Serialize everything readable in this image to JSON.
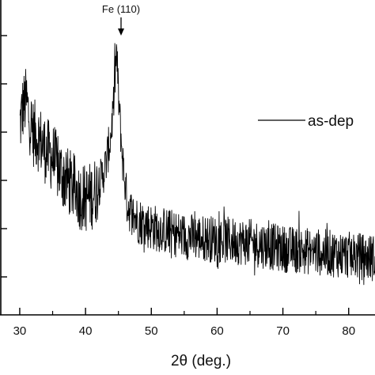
{
  "chart_data": {
    "type": "line",
    "title": "",
    "xlabel": "2θ (deg.)",
    "ylabel": "",
    "xlim": [
      27,
      84
    ],
    "ylim": [
      0,
      1
    ],
    "x_ticks": [
      30,
      40,
      50,
      60,
      70,
      80
    ],
    "x_tick_labels": [
      "30",
      "40",
      "50",
      "60",
      "70",
      "80"
    ],
    "y_tick_count": 7,
    "grid": false,
    "legend": {
      "placement": "right",
      "entries": [
        "as-dep"
      ]
    },
    "annotations": [
      {
        "text": "Fe (110)",
        "x": 44.7,
        "type": "arrow-down"
      }
    ],
    "series": [
      {
        "name": "as-dep",
        "color": "#000000",
        "style": "noisy",
        "points": [
          [
            30,
            0.6
          ],
          [
            30.5,
            0.66
          ],
          [
            31,
            0.68
          ],
          [
            31.5,
            0.62
          ],
          [
            32,
            0.58
          ],
          [
            33,
            0.56
          ],
          [
            34,
            0.52
          ],
          [
            35,
            0.5
          ],
          [
            36,
            0.46
          ],
          [
            37,
            0.43
          ],
          [
            38,
            0.41
          ],
          [
            39,
            0.38
          ],
          [
            40,
            0.37
          ],
          [
            41,
            0.38
          ],
          [
            42,
            0.41
          ],
          [
            43,
            0.47
          ],
          [
            43.8,
            0.56
          ],
          [
            44.3,
            0.68
          ],
          [
            44.7,
            0.84
          ],
          [
            45.1,
            0.66
          ],
          [
            45.6,
            0.5
          ],
          [
            46.3,
            0.36
          ],
          [
            47,
            0.32
          ],
          [
            48,
            0.3
          ],
          [
            50,
            0.28
          ],
          [
            55,
            0.25
          ],
          [
            60,
            0.24
          ],
          [
            65,
            0.23
          ],
          [
            70,
            0.21
          ],
          [
            75,
            0.2
          ],
          [
            80,
            0.19
          ],
          [
            84,
            0.18
          ]
        ]
      }
    ]
  }
}
